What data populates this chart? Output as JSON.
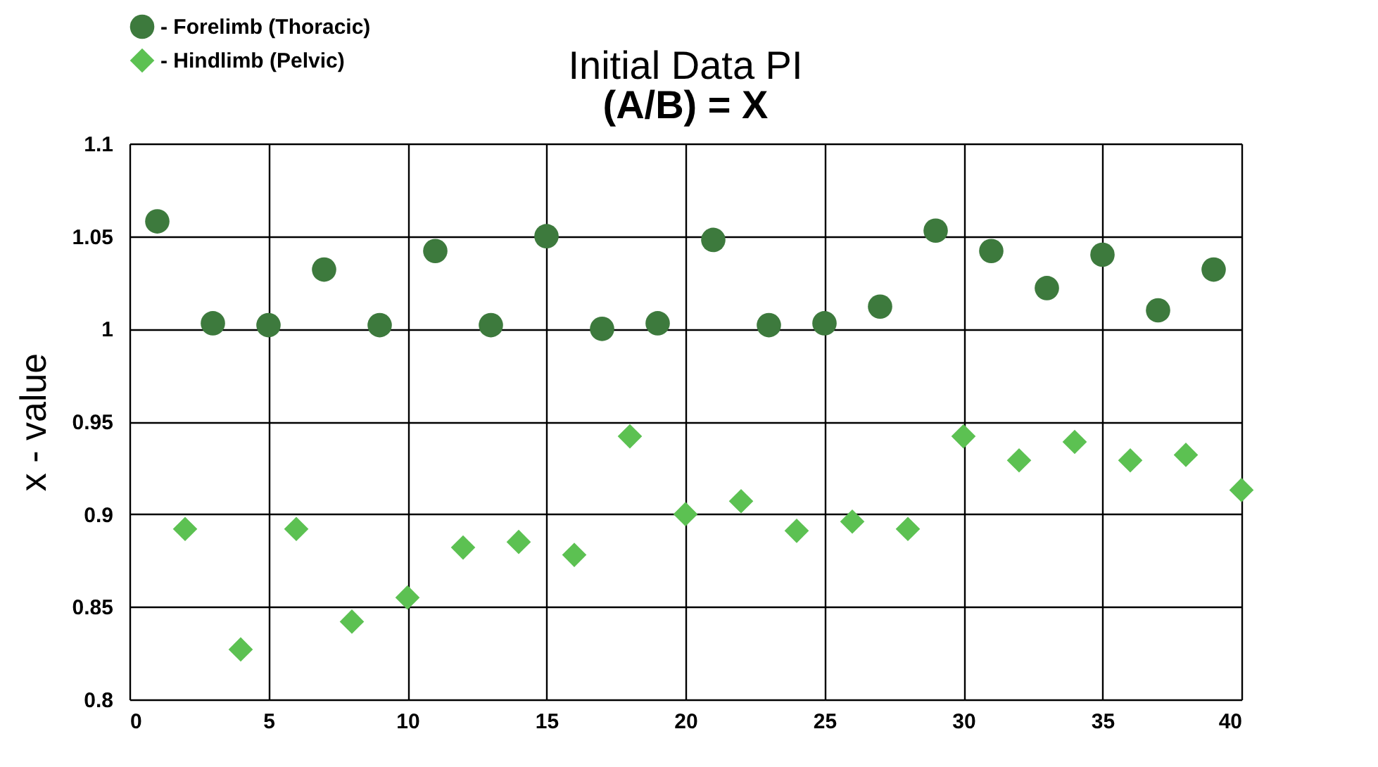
{
  "chart_data": {
    "type": "scatter",
    "title": "Initial Data PI",
    "subtitle": "(A/B) = X",
    "ylabel": "x - value",
    "xlim": [
      0,
      40
    ],
    "xticks": [
      0,
      5,
      10,
      15,
      20,
      25,
      30,
      35,
      40
    ],
    "ylim": [
      0.8,
      1.1
    ],
    "yticks": [
      0.8,
      0.85,
      0.9,
      0.95,
      1,
      1.05,
      1.1
    ],
    "grid": true,
    "legend": "top left",
    "series": [
      {
        "name": "- Forelimb (Thoracic)",
        "color": "#3d7a3d",
        "marker": "circle",
        "x": [
          1,
          3,
          5,
          7,
          9,
          11,
          13,
          15,
          17,
          19,
          21,
          23,
          25,
          27,
          29,
          31,
          33,
          35,
          37,
          39
        ],
        "values": [
          1.058,
          1.003,
          1.002,
          1.032,
          1.002,
          1.042,
          1.002,
          1.05,
          1.0,
          1.003,
          1.048,
          1.002,
          1.003,
          1.012,
          1.053,
          1.042,
          1.022,
          1.04,
          1.01,
          1.032
        ]
      },
      {
        "name": "- Hindlimb (Pelvic)",
        "color": "#5cc152",
        "marker": "diamond",
        "x": [
          2,
          4,
          6,
          8,
          10,
          12,
          14,
          16,
          18,
          20,
          22,
          24,
          26,
          28,
          30,
          32,
          34,
          36,
          38,
          40
        ],
        "values": [
          0.892,
          0.827,
          0.892,
          0.842,
          0.855,
          0.882,
          0.885,
          0.878,
          0.942,
          0.9,
          0.907,
          0.891,
          0.896,
          0.892,
          0.942,
          0.929,
          0.939,
          0.929,
          0.932,
          0.913
        ]
      }
    ]
  }
}
